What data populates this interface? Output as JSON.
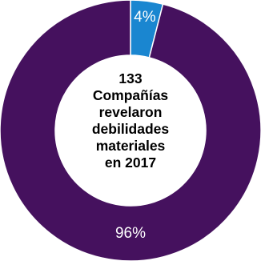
{
  "chart_data": {
    "type": "pie",
    "variant": "donut",
    "title": "",
    "center_label": {
      "lines": [
        "133",
        "Compañías",
        "revelaron",
        "debilidades",
        "materiales",
        "en 2017"
      ]
    },
    "slices": [
      {
        "label": "4%",
        "value": 4,
        "color": "#1a86d0"
      },
      {
        "label": "96%",
        "value": 96,
        "color": "#45115e"
      }
    ],
    "start": "top",
    "direction": "clockwise",
    "legend": "none"
  }
}
